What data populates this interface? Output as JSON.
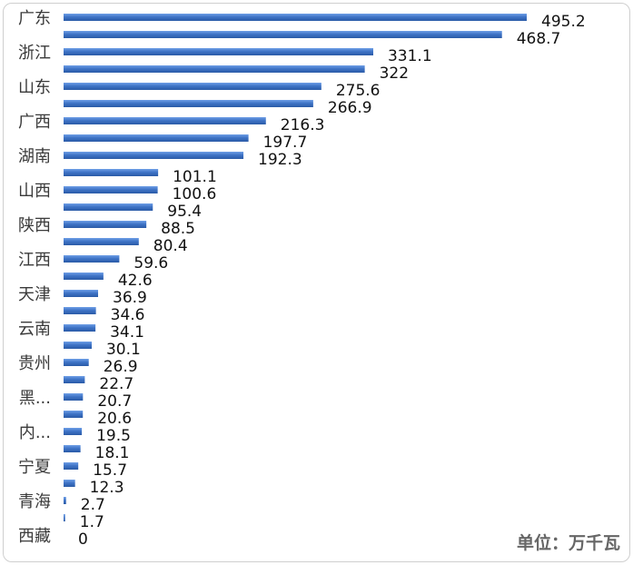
{
  "chart_data": {
    "type": "bar",
    "orientation": "horizontal",
    "categories": [
      "广东",
      "",
      "浙江",
      "",
      "山东",
      "",
      "广西",
      "",
      "湖南",
      "",
      "山西",
      "",
      "陕西",
      "",
      "江西",
      "",
      "天津",
      "",
      "云南",
      "",
      "贵州",
      "",
      "黑...",
      "",
      "内...",
      "",
      "宁夏",
      "",
      "青海",
      "",
      "西藏"
    ],
    "values": [
      495.2,
      468.7,
      331.1,
      322,
      275.6,
      266.9,
      216.3,
      197.7,
      192.3,
      101.1,
      100.6,
      95.4,
      88.5,
      80.4,
      59.6,
      42.6,
      36.9,
      34.6,
      34.1,
      30.1,
      26.9,
      22.7,
      20.7,
      20.6,
      19.5,
      18.1,
      15.7,
      12.3,
      2.7,
      1.7,
      0
    ],
    "value_labels": [
      "495.2",
      "468.7",
      "331.1",
      "322",
      "275.6",
      "266.9",
      "216.3",
      "197.7",
      "192.3",
      "101.1",
      "100.6",
      "95.4",
      "88.5",
      "80.4",
      "59.6",
      "42.6",
      "36.9",
      "34.6",
      "34.1",
      "30.1",
      "26.9",
      "22.7",
      "20.7",
      "20.6",
      "19.5",
      "18.1",
      "15.7",
      "12.3",
      "2.7",
      "1.7",
      "0"
    ],
    "xlim": [
      0,
      495.2
    ],
    "grid": false,
    "bar_color": "#3f74c7",
    "unit_note": "单位：万千瓦"
  }
}
